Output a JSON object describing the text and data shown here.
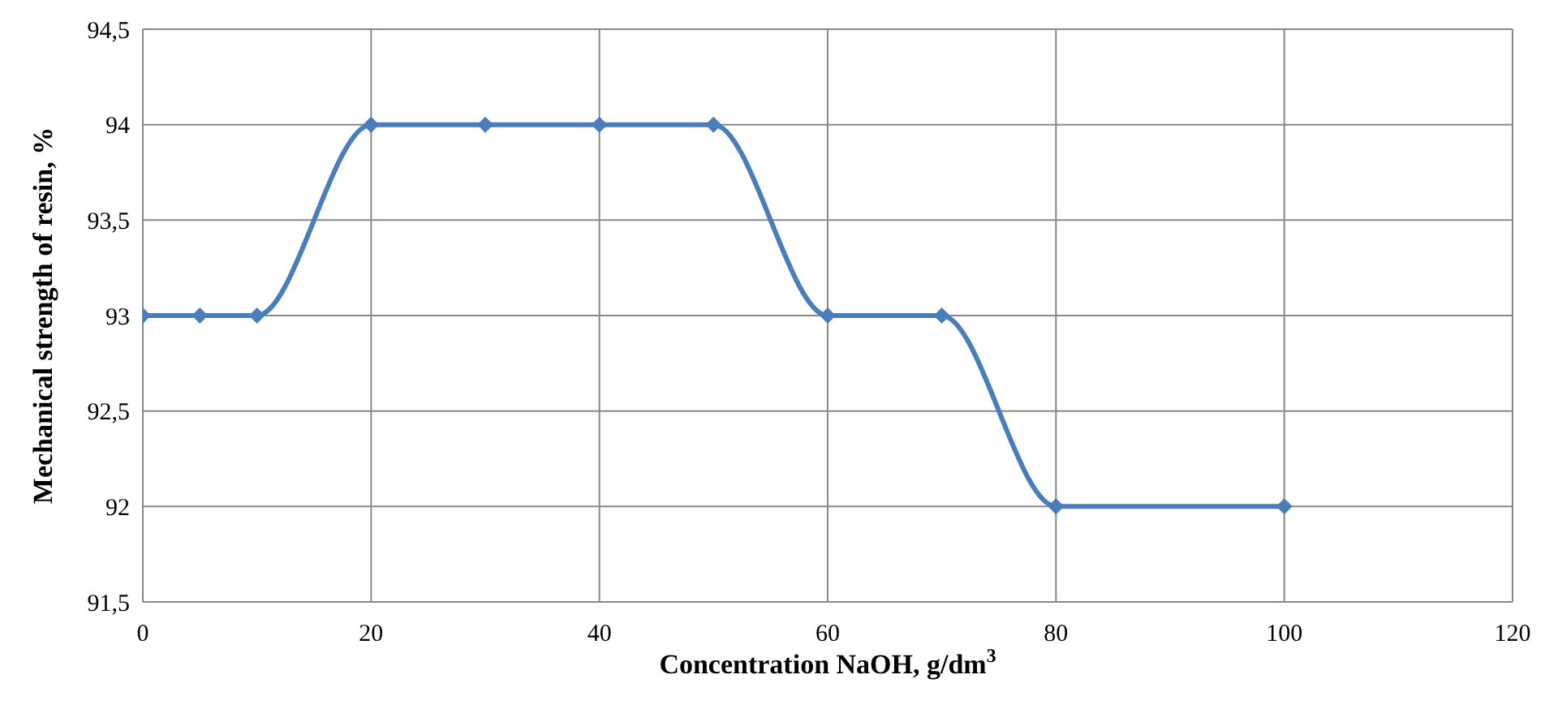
{
  "chart_data": {
    "type": "line",
    "xlabel": "Concentration NaOH, g/dm$^{3}$",
    "ylabel": "Mechanical strength of resin, %",
    "x": [
      0,
      5,
      10,
      20,
      30,
      40,
      50,
      60,
      70,
      80,
      100
    ],
    "series": [
      {
        "color": "#4a7ebb",
        "values": [
          93,
          93,
          93,
          94,
          94,
          94,
          94,
          93,
          93,
          92,
          92
        ]
      }
    ],
    "xlim": [
      0,
      120
    ],
    "xticks": [
      0,
      20,
      40,
      60,
      80,
      100,
      120
    ],
    "ylim": [
      91.5,
      94.5
    ],
    "yticks": [
      {
        "value": 91.5,
        "label": "91,5"
      },
      92,
      {
        "value": 92.5,
        "label": "92,5"
      },
      93,
      {
        "value": 93.5,
        "label": "93,5"
      },
      94,
      {
        "value": 94.5,
        "label": "94,5"
      }
    ],
    "grid": true,
    "marker": "diamond",
    "line_style": "solid"
  }
}
